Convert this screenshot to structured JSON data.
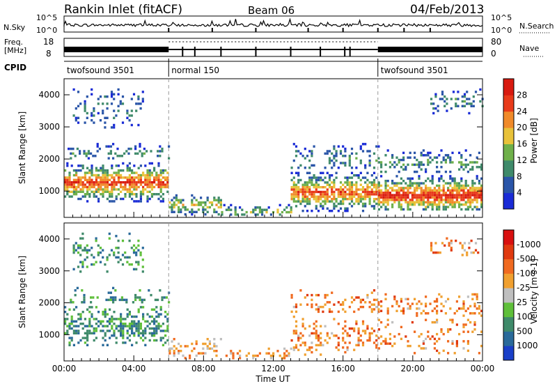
{
  "header": {
    "station": "Rankin Inlet (fitACF)",
    "beam": "Beam 06",
    "date": "04/Feb/2013"
  },
  "noise_panel": {
    "left_label": "N.Sky",
    "right_label": "N.Search",
    "tick_hi": "10^5",
    "tick_lo": "10^0"
  },
  "freq_panel": {
    "left_label_1": "Freq.",
    "left_label_2": "[MHz]",
    "left_ticks": [
      "18",
      "8"
    ],
    "right_ticks": [
      "80",
      "0"
    ],
    "right_label": "Nave"
  },
  "cpid": {
    "label": "CPID",
    "segments": [
      {
        "start_hour": 0,
        "end_hour": 6,
        "name": "twofsound 3501"
      },
      {
        "start_hour": 6,
        "end_hour": 18,
        "name": "normal 150"
      },
      {
        "start_hour": 18,
        "end_hour": 24,
        "name": "twofsound 3501"
      }
    ]
  },
  "chart_data": [
    {
      "type": "heatmap",
      "name": "power",
      "xlabel": "",
      "ylabel": "Slant Range [km]",
      "x_ticks": [
        "00:00",
        "04:00",
        "08:00",
        "12:00",
        "16:00",
        "20:00",
        "00:00"
      ],
      "xlim_hours": [
        0,
        24
      ],
      "y_ticks": [
        1000,
        2000,
        3000,
        4000
      ],
      "ylim": [
        180,
        4500
      ],
      "colorbar": {
        "label": "Power [dB]",
        "tick_labels": [
          "4",
          "8",
          "12",
          "16",
          "20",
          "24",
          "28"
        ],
        "colors": [
          "#1a2bd6",
          "#2a55a8",
          "#3f8a6a",
          "#6fb04a",
          "#e8c23a",
          "#f08a2a",
          "#e83a1a",
          "#d81a10"
        ]
      },
      "echo_regions": [
        {
          "t": [
            0,
            6
          ],
          "r": [
            700,
            1900
          ],
          "core": 1300,
          "level": 0.9
        },
        {
          "t": [
            0.2,
            6
          ],
          "r": [
            2000,
            2500
          ],
          "core": 2200,
          "level": 0.3
        },
        {
          "t": [
            0.5,
            4.5
          ],
          "r": [
            3000,
            4200
          ],
          "core": 3600,
          "level": 0.25
        },
        {
          "t": [
            6,
            9
          ],
          "r": [
            250,
            900
          ],
          "core": 600,
          "level": 0.55
        },
        {
          "t": [
            9,
            13
          ],
          "r": [
            250,
            600
          ],
          "core": 400,
          "level": 0.5
        },
        {
          "t": [
            13,
            18
          ],
          "r": [
            400,
            1600
          ],
          "core": 1000,
          "level": 0.85
        },
        {
          "t": [
            13,
            18
          ],
          "r": [
            1700,
            2500
          ],
          "core": 2000,
          "level": 0.3
        },
        {
          "t": [
            18,
            24
          ],
          "r": [
            400,
            1500
          ],
          "core": 900,
          "level": 0.95
        },
        {
          "t": [
            18,
            24
          ],
          "r": [
            1600,
            2300
          ],
          "core": 1900,
          "level": 0.35
        },
        {
          "t": [
            21,
            24
          ],
          "r": [
            3400,
            4200
          ],
          "core": 3800,
          "level": 0.3
        }
      ]
    },
    {
      "type": "heatmap",
      "name": "velocity",
      "xlabel": "Time UT",
      "ylabel": "Slant Range [km]",
      "x_ticks": [
        "00:00",
        "04:00",
        "08:00",
        "12:00",
        "16:00",
        "20:00",
        "00:00"
      ],
      "xlim_hours": [
        0,
        24
      ],
      "y_ticks": [
        1000,
        2000,
        3000,
        4000
      ],
      "ylim": [
        180,
        4500
      ],
      "colorbar": {
        "label": "Velocity [m s-1]",
        "tick_labels": [
          "1000",
          "500",
          "100",
          "25",
          "-25",
          "-100",
          "-500",
          "-1000"
        ],
        "colors": [
          "#1a3fc8",
          "#2a6a9a",
          "#3f8a6a",
          "#5fbf3a",
          "#bfbfbf",
          "#f0a030",
          "#f06a20",
          "#e03a10",
          "#d81010"
        ]
      },
      "echo_regions": [
        {
          "t": [
            0,
            6
          ],
          "r": [
            700,
            1900
          ],
          "core": 1300,
          "level": 0.6
        },
        {
          "t": [
            0.2,
            6
          ],
          "r": [
            2000,
            2500
          ],
          "core": 2200,
          "level": 0.3
        },
        {
          "t": [
            0.5,
            4.5
          ],
          "r": [
            3000,
            4200
          ],
          "core": 3600,
          "level": 0.25
        },
        {
          "t": [
            6,
            9
          ],
          "r": [
            250,
            900
          ],
          "core": 600,
          "level": 0.35
        },
        {
          "t": [
            9,
            13
          ],
          "r": [
            250,
            600
          ],
          "core": 400,
          "level": 0.35
        },
        {
          "t": [
            13,
            18
          ],
          "r": [
            400,
            1600
          ],
          "core": 1000,
          "level": 0.3
        },
        {
          "t": [
            13,
            18
          ],
          "r": [
            1700,
            2500
          ],
          "core": 2000,
          "level": 0.3
        },
        {
          "t": [
            18,
            24
          ],
          "r": [
            400,
            1500
          ],
          "core": 900,
          "level": 0.2
        },
        {
          "t": [
            18,
            24
          ],
          "r": [
            1600,
            2300
          ],
          "core": 1900,
          "level": 0.3
        },
        {
          "t": [
            21,
            24
          ],
          "r": [
            3400,
            4200
          ],
          "core": 3800,
          "level": 0.25
        }
      ]
    }
  ]
}
